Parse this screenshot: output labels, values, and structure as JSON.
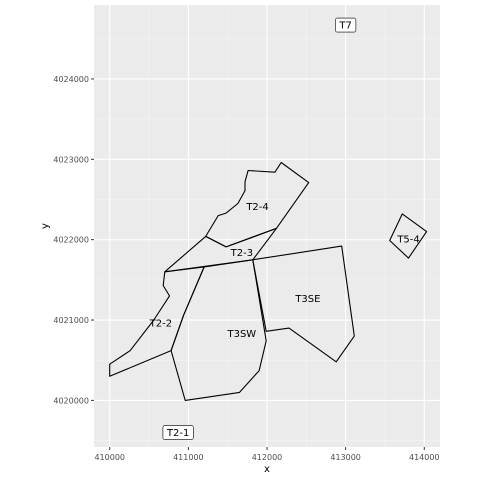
{
  "chart_data": {
    "type": "map-polygons",
    "xlabel": "x",
    "ylabel": "y",
    "xlim": [
      409800,
      414200
    ],
    "ylim": [
      4019420,
      4024920
    ],
    "x_ticks": [
      410000,
      411000,
      412000,
      413000,
      414000
    ],
    "y_ticks": [
      4020000,
      4021000,
      4022000,
      4023000,
      4024000
    ],
    "x_tick_labels": [
      "410000",
      "411000",
      "412000",
      "413000",
      "414000"
    ],
    "y_tick_labels": [
      "4020000",
      "4021000",
      "4022000",
      "4023000",
      "4024000"
    ],
    "colors": {
      "panel": "#ebebeb",
      "grid_major": "#ffffff",
      "grid_minor": "#f5f5f5",
      "outline": "#000000",
      "label_box": "#ffffff"
    },
    "polygons": [
      {
        "name": "T2-4",
        "points": [
          [
            411220,
            4022040
          ],
          [
            411380,
            4022300
          ],
          [
            411480,
            4022330
          ],
          [
            411630,
            4022450
          ],
          [
            411720,
            4022610
          ],
          [
            411720,
            4022720
          ],
          [
            411760,
            4022860
          ],
          [
            412100,
            4022840
          ],
          [
            412180,
            4022960
          ],
          [
            412530,
            4022710
          ],
          [
            412120,
            4022140
          ],
          [
            411480,
            4021910
          ]
        ]
      },
      {
        "name": "T2-3",
        "points": [
          [
            410700,
            4021600
          ],
          [
            411220,
            4022040
          ],
          [
            411480,
            4021910
          ],
          [
            412120,
            4022140
          ],
          [
            411820,
            4021750
          ]
        ]
      },
      {
        "name": "T2-2",
        "points": [
          [
            410000,
            4020450
          ],
          [
            410260,
            4020620
          ],
          [
            410560,
            4021000
          ],
          [
            410760,
            4021300
          ],
          [
            410680,
            4021430
          ],
          [
            410700,
            4021600
          ],
          [
            411200,
            4021660
          ],
          [
            410940,
            4021060
          ],
          [
            410780,
            4020620
          ],
          [
            410000,
            4020300
          ]
        ]
      },
      {
        "name": "T3SW",
        "points": [
          [
            410780,
            4020620
          ],
          [
            410960,
            4020000
          ],
          [
            411650,
            4020100
          ],
          [
            411900,
            4020370
          ],
          [
            411990,
            4020740
          ],
          [
            411820,
            4021750
          ],
          [
            411200,
            4021660
          ],
          [
            410940,
            4021060
          ]
        ]
      },
      {
        "name": "T3SE",
        "points": [
          [
            411820,
            4021750
          ],
          [
            412950,
            4021920
          ],
          [
            413110,
            4020800
          ],
          [
            412880,
            4020480
          ],
          [
            412280,
            4020900
          ],
          [
            411990,
            4020860
          ]
        ]
      },
      {
        "name": "T5-4",
        "points": [
          [
            413720,
            4022320
          ],
          [
            414030,
            4022100
          ],
          [
            413800,
            4021770
          ],
          [
            413560,
            4021990
          ]
        ]
      }
    ],
    "region_labels": [
      {
        "text": "T2-4",
        "x": 411880,
        "y": 4022410
      },
      {
        "text": "T2-3",
        "x": 411680,
        "y": 4021840
      },
      {
        "text": "T2-2",
        "x": 410650,
        "y": 4020960
      },
      {
        "text": "T3SW",
        "x": 411680,
        "y": 4020830
      },
      {
        "text": "T3SE",
        "x": 412520,
        "y": 4021270
      },
      {
        "text": "T5-4",
        "x": 413800,
        "y": 4022010
      }
    ],
    "boxed_labels": [
      {
        "text": "T7",
        "x": 413000,
        "y": 4024670
      },
      {
        "text": "T2-1",
        "x": 410870,
        "y": 4019600
      }
    ]
  }
}
